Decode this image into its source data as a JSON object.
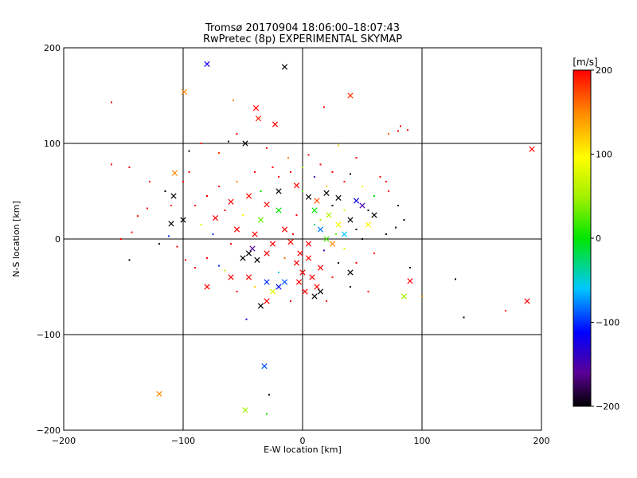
{
  "chart_data": {
    "type": "scatter",
    "title": "Tromsø 20170904 18:06:00–18:07:43",
    "subtitle": "RwPretec (8p) EXPERIMENTAL SKYMAP",
    "xlabel": "E-W location [km]",
    "ylabel": "N-S location [km]",
    "xlim": [
      -200,
      200
    ],
    "ylim": [
      -200,
      200
    ],
    "xticks": [
      -200,
      -100,
      0,
      100,
      200
    ],
    "yticks": [
      -200,
      -100,
      0,
      100,
      200
    ],
    "grid": true,
    "colorbar": {
      "label": "[m/s]",
      "min": -200,
      "max": 200,
      "ticks": [
        200,
        100,
        0,
        -100,
        -200
      ]
    },
    "marker_legend": "",
    "points_large": [
      {
        "x": -80,
        "y": 183,
        "v": -120
      },
      {
        "x": -15,
        "y": 180,
        "v": -200
      },
      {
        "x": -99,
        "y": 154,
        "v": 150
      },
      {
        "x": -39,
        "y": 137,
        "v": 200
      },
      {
        "x": -37,
        "y": 126,
        "v": 190
      },
      {
        "x": -23,
        "y": 120,
        "v": 200
      },
      {
        "x": 40,
        "y": 150,
        "v": 180
      },
      {
        "x": 192,
        "y": 94,
        "v": 200
      },
      {
        "x": -48,
        "y": 100,
        "v": -200
      },
      {
        "x": -107,
        "y": 69,
        "v": 150
      },
      {
        "x": -108,
        "y": 45,
        "v": -200
      },
      {
        "x": -100,
        "y": 20,
        "v": -200
      },
      {
        "x": -110,
        "y": 16,
        "v": -200
      },
      {
        "x": -73,
        "y": 22,
        "v": 200
      },
      {
        "x": -60,
        "y": 39,
        "v": 200
      },
      {
        "x": -45,
        "y": 45,
        "v": 195
      },
      {
        "x": -30,
        "y": 36,
        "v": 200
      },
      {
        "x": -20,
        "y": 50,
        "v": -200
      },
      {
        "x": -5,
        "y": 56,
        "v": 200
      },
      {
        "x": 5,
        "y": 44,
        "v": -200
      },
      {
        "x": 12,
        "y": 40,
        "v": 170
      },
      {
        "x": 20,
        "y": 48,
        "v": -200
      },
      {
        "x": 30,
        "y": 43,
        "v": -200
      },
      {
        "x": 45,
        "y": 40,
        "v": -120
      },
      {
        "x": 10,
        "y": 30,
        "v": 0
      },
      {
        "x": 22,
        "y": 25,
        "v": 60
      },
      {
        "x": 30,
        "y": 15,
        "v": 90
      },
      {
        "x": 15,
        "y": 10,
        "v": -80
      },
      {
        "x": 40,
        "y": 20,
        "v": -200
      },
      {
        "x": -20,
        "y": 30,
        "v": 0
      },
      {
        "x": -35,
        "y": 20,
        "v": 30
      },
      {
        "x": -40,
        "y": 5,
        "v": 200
      },
      {
        "x": -55,
        "y": 10,
        "v": 200
      },
      {
        "x": -50,
        "y": -20,
        "v": -200
      },
      {
        "x": -45,
        "y": -15,
        "v": -200
      },
      {
        "x": -38,
        "y": -22,
        "v": -200
      },
      {
        "x": -42,
        "y": -10,
        "v": -160
      },
      {
        "x": -30,
        "y": -15,
        "v": 200
      },
      {
        "x": -25,
        "y": -5,
        "v": 200
      },
      {
        "x": -15,
        "y": 10,
        "v": 200
      },
      {
        "x": -10,
        "y": -3,
        "v": 200
      },
      {
        "x": -60,
        "y": -40,
        "v": 200
      },
      {
        "x": -80,
        "y": -50,
        "v": 200
      },
      {
        "x": -45,
        "y": -40,
        "v": 200
      },
      {
        "x": -30,
        "y": -45,
        "v": -100
      },
      {
        "x": -20,
        "y": -50,
        "v": -110
      },
      {
        "x": -15,
        "y": -45,
        "v": -90
      },
      {
        "x": -25,
        "y": -55,
        "v": 80
      },
      {
        "x": -5,
        "y": -25,
        "v": 200
      },
      {
        "x": 0,
        "y": -35,
        "v": 200
      },
      {
        "x": 5,
        "y": -20,
        "v": 200
      },
      {
        "x": 8,
        "y": -40,
        "v": 200
      },
      {
        "x": 12,
        "y": -50,
        "v": 200
      },
      {
        "x": 15,
        "y": -30,
        "v": 200
      },
      {
        "x": 2,
        "y": -55,
        "v": 200
      },
      {
        "x": -3,
        "y": -45,
        "v": 200
      },
      {
        "x": 5,
        "y": -5,
        "v": 200
      },
      {
        "x": -2,
        "y": -15,
        "v": 200
      },
      {
        "x": 10,
        "y": -60,
        "v": -200
      },
      {
        "x": 15,
        "y": -55,
        "v": -200
      },
      {
        "x": -30,
        "y": -65,
        "v": 200
      },
      {
        "x": -35,
        "y": -70,
        "v": -200
      },
      {
        "x": 40,
        "y": -35,
        "v": -200
      },
      {
        "x": 90,
        "y": -44,
        "v": 200
      },
      {
        "x": 85,
        "y": -60,
        "v": 50
      },
      {
        "x": 188,
        "y": -65,
        "v": 200
      },
      {
        "x": -120,
        "y": -162,
        "v": 150
      },
      {
        "x": -48,
        "y": -179,
        "v": 50
      },
      {
        "x": -32,
        "y": -133,
        "v": -90
      },
      {
        "x": 25,
        "y": -5,
        "v": 150
      },
      {
        "x": 35,
        "y": 5,
        "v": -60
      },
      {
        "x": 20,
        "y": 0,
        "v": 20
      },
      {
        "x": 55,
        "y": 15,
        "v": 100
      },
      {
        "x": 60,
        "y": 25,
        "v": -200
      },
      {
        "x": 50,
        "y": 35,
        "v": -150
      }
    ],
    "points_small": [
      {
        "x": -160,
        "y": 143,
        "v": 200
      },
      {
        "x": -58,
        "y": 145,
        "v": 150
      },
      {
        "x": 18,
        "y": 138,
        "v": 200
      },
      {
        "x": 82,
        "y": 118,
        "v": 200
      },
      {
        "x": 88,
        "y": 114,
        "v": 200
      },
      {
        "x": 80,
        "y": 113,
        "v": 200
      },
      {
        "x": 72,
        "y": 110,
        "v": 160
      },
      {
        "x": -160,
        "y": 78,
        "v": 200
      },
      {
        "x": -145,
        "y": 75,
        "v": 200
      },
      {
        "x": -128,
        "y": 60,
        "v": 200
      },
      {
        "x": -115,
        "y": 50,
        "v": -200
      },
      {
        "x": -130,
        "y": 32,
        "v": 200
      },
      {
        "x": -138,
        "y": 24,
        "v": 200
      },
      {
        "x": -143,
        "y": 7,
        "v": 200
      },
      {
        "x": -152,
        "y": 0,
        "v": 200
      },
      {
        "x": -145,
        "y": -22,
        "v": -200
      },
      {
        "x": -120,
        "y": -5,
        "v": -200
      },
      {
        "x": -112,
        "y": 3,
        "v": -100
      },
      {
        "x": -105,
        "y": -8,
        "v": 200
      },
      {
        "x": -98,
        "y": -22,
        "v": 200
      },
      {
        "x": -90,
        "y": -30,
        "v": 200
      },
      {
        "x": -80,
        "y": -20,
        "v": 200
      },
      {
        "x": -70,
        "y": -28,
        "v": -100
      },
      {
        "x": -65,
        "y": -33,
        "v": 60
      },
      {
        "x": -95,
        "y": 92,
        "v": -200
      },
      {
        "x": -85,
        "y": 100,
        "v": 200
      },
      {
        "x": -70,
        "y": 90,
        "v": 180
      },
      {
        "x": -62,
        "y": 102,
        "v": -200
      },
      {
        "x": -55,
        "y": 110,
        "v": 200
      },
      {
        "x": -30,
        "y": 95,
        "v": 200
      },
      {
        "x": -12,
        "y": 85,
        "v": 150
      },
      {
        "x": 5,
        "y": 88,
        "v": 200
      },
      {
        "x": 30,
        "y": 98,
        "v": 120
      },
      {
        "x": 45,
        "y": 85,
        "v": 200
      },
      {
        "x": 70,
        "y": 60,
        "v": 200
      },
      {
        "x": 72,
        "y": 50,
        "v": 200
      },
      {
        "x": 80,
        "y": 35,
        "v": -200
      },
      {
        "x": 85,
        "y": 20,
        "v": -200
      },
      {
        "x": 78,
        "y": 12,
        "v": -200
      },
      {
        "x": 70,
        "y": 5,
        "v": -200
      },
      {
        "x": 90,
        "y": -30,
        "v": -200
      },
      {
        "x": 100,
        "y": -60,
        "v": 150
      },
      {
        "x": 128,
        "y": -42,
        "v": -200
      },
      {
        "x": 135,
        "y": -82,
        "v": -200
      },
      {
        "x": 170,
        "y": -75,
        "v": 200
      },
      {
        "x": 55,
        "y": -55,
        "v": 200
      },
      {
        "x": 60,
        "y": -15,
        "v": 200
      },
      {
        "x": -47,
        "y": -84,
        "v": -120
      },
      {
        "x": -28,
        "y": -163,
        "v": -200
      },
      {
        "x": -30,
        "y": -183,
        "v": 0
      },
      {
        "x": -10,
        "y": 70,
        "v": 200
      },
      {
        "x": -20,
        "y": 65,
        "v": 200
      },
      {
        "x": 10,
        "y": 65,
        "v": -150
      },
      {
        "x": 25,
        "y": 70,
        "v": 200
      },
      {
        "x": 35,
        "y": 60,
        "v": 200
      },
      {
        "x": 50,
        "y": 55,
        "v": 100
      },
      {
        "x": 60,
        "y": 45,
        "v": 0
      },
      {
        "x": -70,
        "y": 55,
        "v": 200
      },
      {
        "x": -80,
        "y": 45,
        "v": 200
      },
      {
        "x": -90,
        "y": 35,
        "v": 200
      },
      {
        "x": -85,
        "y": 15,
        "v": 80
      },
      {
        "x": -75,
        "y": 5,
        "v": -100
      },
      {
        "x": -60,
        "y": -5,
        "v": 200
      },
      {
        "x": -65,
        "y": 30,
        "v": 200
      },
      {
        "x": -55,
        "y": 60,
        "v": 150
      },
      {
        "x": -40,
        "y": 70,
        "v": 200
      },
      {
        "x": -25,
        "y": 75,
        "v": 200
      },
      {
        "x": 0,
        "y": 75,
        "v": 50
      },
      {
        "x": 15,
        "y": 78,
        "v": 200
      },
      {
        "x": 40,
        "y": 68,
        "v": -200
      },
      {
        "x": 55,
        "y": 30,
        "v": -200
      },
      {
        "x": 45,
        "y": 10,
        "v": -200
      },
      {
        "x": 35,
        "y": -10,
        "v": 80
      },
      {
        "x": 30,
        "y": -25,
        "v": -200
      },
      {
        "x": 25,
        "y": -40,
        "v": 200
      },
      {
        "x": 20,
        "y": -65,
        "v": 200
      },
      {
        "x": -10,
        "y": -65,
        "v": 200
      },
      {
        "x": -20,
        "y": -35,
        "v": -50
      },
      {
        "x": 45,
        "y": -25,
        "v": 200
      },
      {
        "x": 50,
        "y": 0,
        "v": -200
      },
      {
        "x": -35,
        "y": 50,
        "v": 0
      },
      {
        "x": 0,
        "y": 50,
        "v": 30
      },
      {
        "x": 20,
        "y": 55,
        "v": 110
      },
      {
        "x": 35,
        "y": 30,
        "v": 70
      },
      {
        "x": 10,
        "y": 15,
        "v": -30
      },
      {
        "x": -5,
        "y": 25,
        "v": 200
      },
      {
        "x": -50,
        "y": 25,
        "v": 100
      },
      {
        "x": -100,
        "y": 60,
        "v": 200
      },
      {
        "x": -110,
        "y": 35,
        "v": 180
      },
      {
        "x": -95,
        "y": 70,
        "v": 200
      },
      {
        "x": -15,
        "y": -20,
        "v": 160
      },
      {
        "x": 25,
        "y": 35,
        "v": -200
      },
      {
        "x": 15,
        "y": 20,
        "v": 50
      },
      {
        "x": -8,
        "y": 5,
        "v": 200
      },
      {
        "x": 40,
        "y": -50,
        "v": -200
      },
      {
        "x": -55,
        "y": -55,
        "v": 200
      },
      {
        "x": -40,
        "y": -50,
        "v": 120
      },
      {
        "x": 65,
        "y": 65,
        "v": 200
      },
      {
        "x": 28,
        "y": 5,
        "v": 30
      },
      {
        "x": 18,
        "y": -12,
        "v": -150
      }
    ]
  }
}
